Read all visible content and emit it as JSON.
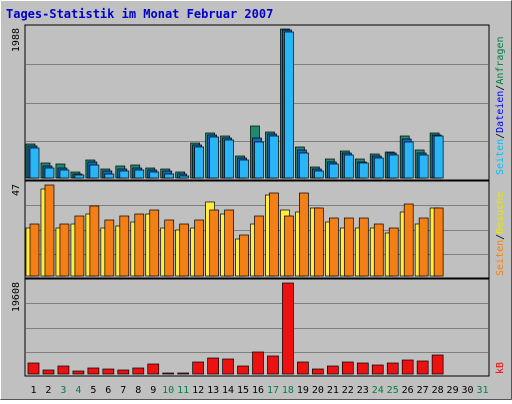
{
  "chart_data": [
    {
      "type": "bar",
      "title": "Tages-Statistik im Monat Februar 2007",
      "panel": "top",
      "ylabel_value": "1988",
      "ylim": [
        0,
        1988
      ],
      "categories": [
        "1",
        "2",
        "3",
        "4",
        "5",
        "6",
        "7",
        "8",
        "9",
        "10",
        "11",
        "12",
        "13",
        "14",
        "15",
        "16",
        "17",
        "18",
        "19",
        "20",
        "21",
        "22",
        "23",
        "24",
        "25",
        "26",
        "27",
        "28",
        "29",
        "30",
        "31"
      ],
      "weekend_days": [
        "3",
        "4",
        "10",
        "11",
        "17",
        "18",
        "24",
        "25",
        "31"
      ],
      "right_legend": [
        {
          "name": "Anfragen",
          "color": "#008040"
        },
        {
          "name": "Dateien",
          "color": "#0000ff"
        },
        {
          "name": "Seiten",
          "color": "#00c0ff"
        }
      ],
      "legend_separator": "/",
      "series": [
        {
          "name": "Anfragen",
          "color": "#1e8a6e",
          "values": [
            460,
            200,
            190,
            80,
            240,
            120,
            160,
            170,
            140,
            120,
            80,
            470,
            600,
            560,
            290,
            690,
            620,
            1988,
            410,
            150,
            250,
            360,
            260,
            320,
            350,
            560,
            380,
            600,
            null,
            null,
            null
          ]
        },
        {
          "name": "Dateien",
          "color": "#1565c0",
          "values": [
            430,
            160,
            140,
            60,
            210,
            90,
            120,
            140,
            110,
            90,
            50,
            440,
            580,
            540,
            270,
            540,
            590,
            1968,
            380,
            120,
            220,
            340,
            220,
            290,
            330,
            520,
            340,
            580,
            null,
            null,
            null
          ]
        },
        {
          "name": "Seiten",
          "color": "#29b6f6",
          "values": [
            400,
            130,
            110,
            40,
            180,
            60,
            90,
            110,
            80,
            60,
            30,
            410,
            550,
            510,
            240,
            480,
            560,
            1950,
            330,
            90,
            190,
            310,
            200,
            270,
            310,
            480,
            310,
            560,
            null,
            null,
            null
          ]
        }
      ]
    },
    {
      "type": "bar",
      "panel": "middle",
      "ylabel_value": "47",
      "ylim": [
        0,
        47
      ],
      "right_legend": [
        {
          "name": "Besuche",
          "color": "#e8e800"
        },
        {
          "name": "Seiten",
          "color": "#ff8000"
        }
      ],
      "legend_separator": "/",
      "series": [
        {
          "name": "Besuche",
          "color": "#ffee40",
          "values": [
            25,
            45,
            25,
            27,
            32,
            25,
            26,
            28,
            32,
            25,
            24,
            25,
            38,
            32,
            19,
            27,
            42,
            34,
            33,
            35,
            28,
            25,
            25,
            25,
            22,
            33,
            27,
            35,
            null,
            null,
            null
          ]
        },
        {
          "name": "Seiten",
          "color": "#f57f17",
          "values": [
            27,
            47,
            27,
            31,
            36,
            29,
            31,
            32,
            34,
            29,
            27,
            29,
            34,
            34,
            21,
            31,
            43,
            31,
            43,
            35,
            30,
            30,
            30,
            27,
            25,
            37,
            30,
            35,
            null,
            null,
            null
          ]
        }
      ]
    },
    {
      "type": "bar",
      "panel": "bottom",
      "ylabel_value": "19608",
      "ylim": [
        0,
        19608
      ],
      "right_legend": [
        {
          "name": "kB",
          "color": "#ff0000"
        }
      ],
      "series": [
        {
          "name": "kB",
          "color": "#ee1111",
          "values": [
            2450,
            900,
            1700,
            700,
            1300,
            1000,
            800,
            1200,
            2200,
            300,
            300,
            2600,
            3500,
            3300,
            1800,
            4700,
            3900,
            19608,
            2500,
            1100,
            1700,
            2500,
            2300,
            1900,
            2300,
            3000,
            2700,
            4100,
            null,
            null,
            null
          ]
        }
      ]
    }
  ]
}
